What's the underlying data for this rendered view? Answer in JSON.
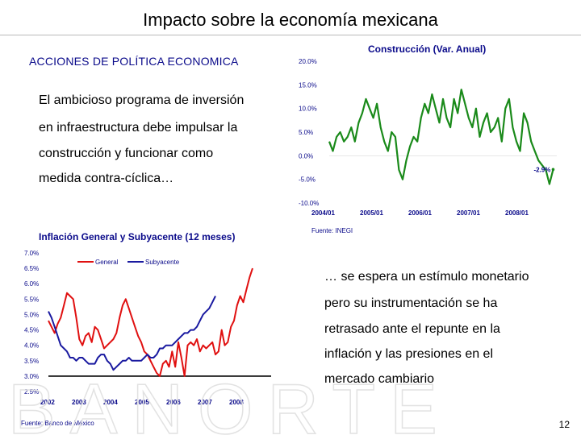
{
  "title": "Impacto sobre la economía mexicana",
  "left_heading": "ACCIONES DE POLÍTICA ECONOMICA",
  "paragraph_lines": [
    "El ambicioso programa de inversión",
    "en infraestructura debe impulsar la",
    "construcción y funcionar como",
    "medida contra-cíclica…"
  ],
  "right_lines": [
    "… se espera un estímulo monetario",
    "pero su instrumentación se ha",
    "retrasado ante el repunte en la",
    "inflación y las presiones en el",
    "mercado cambiario"
  ],
  "page_number": "12",
  "watermark_text": "BANORTE",
  "colors": {
    "title": "#000000",
    "heading": "#0a0a8a",
    "construccion": "#1a8a1a",
    "general": "#e01010",
    "subyacente": "#1a1aa0"
  },
  "chart_data": [
    {
      "type": "line",
      "title": "Construcción (Var. Anual)",
      "source": "Fuente: INEGI",
      "y_tick_labels": [
        "20.0%",
        "15.0%",
        "10.0%",
        "5.0%",
        "0.0%",
        "-5.0%",
        "-10.0%"
      ],
      "y_ticks": [
        20,
        15,
        10,
        5,
        0,
        -5,
        -10
      ],
      "ylim": [
        -10,
        20
      ],
      "x_tick_labels": [
        "2004/01",
        "2005/01",
        "2006/01",
        "2007/01",
        "2008/01"
      ],
      "xlim": [
        0,
        62
      ],
      "annotation": "-2.9%",
      "series": [
        {
          "name": "Construcción",
          "values": [
            3,
            1,
            4,
            5,
            3,
            4,
            6,
            3,
            7,
            9,
            12,
            10,
            8,
            11,
            6,
            3,
            1,
            5,
            4,
            -3,
            -5,
            -1,
            2,
            4,
            3,
            8,
            11,
            9,
            13,
            10,
            7,
            12,
            8,
            6,
            12,
            9,
            14,
            11,
            8,
            6,
            10,
            4,
            7,
            9,
            5,
            6,
            8,
            3,
            10,
            12,
            6,
            3,
            1,
            9,
            7,
            3,
            1,
            -1,
            -2,
            -3,
            -6,
            -2.9
          ]
        }
      ]
    },
    {
      "type": "line",
      "title": "Inflación General y Subyacente (12 meses)",
      "source": "Fuente: Banco de México",
      "y_tick_labels": [
        "7.0%",
        "6.5%",
        "6.0%",
        "5.5%",
        "5.0%",
        "4.5%",
        "4.0%",
        "3.5%",
        "3.0%",
        "2.5%"
      ],
      "y_ticks": [
        7.0,
        6.5,
        6.0,
        5.5,
        5.0,
        4.5,
        4.0,
        3.5,
        3.0,
        2.5
      ],
      "ylim": [
        2.5,
        7.0
      ],
      "x_tick_labels": [
        "2002",
        "2003",
        "2004",
        "2005",
        "2006",
        "2007",
        "2008"
      ],
      "xlim": [
        0,
        72
      ],
      "reference_line": 3.0,
      "legend": [
        "General",
        "Subyacente"
      ],
      "series": [
        {
          "name": "General",
          "values": [
            4.8,
            4.6,
            4.4,
            4.7,
            4.9,
            5.3,
            5.7,
            5.6,
            5.5,
            4.9,
            4.2,
            4.0,
            4.3,
            4.4,
            4.1,
            4.6,
            4.5,
            4.2,
            3.9,
            4.0,
            4.1,
            4.2,
            4.4,
            4.9,
            5.3,
            5.5,
            5.2,
            4.9,
            4.6,
            4.3,
            4.1,
            3.8,
            3.7,
            3.5,
            3.3,
            3.1,
            3.0,
            3.4,
            3.5,
            3.3,
            3.8,
            3.3,
            4.1,
            3.6,
            3.0,
            4.0,
            4.1,
            4.0,
            4.2,
            3.8,
            4.0,
            3.9,
            4.0,
            4.1,
            3.7,
            3.8,
            4.5,
            4.0,
            4.1,
            4.6,
            4.8,
            5.3,
            5.6,
            5.4,
            5.8,
            6.2,
            6.5
          ]
        },
        {
          "name": "Subyacente",
          "values": [
            5.1,
            4.9,
            4.6,
            4.3,
            4.0,
            3.9,
            3.8,
            3.6,
            3.6,
            3.5,
            3.6,
            3.6,
            3.5,
            3.4,
            3.4,
            3.4,
            3.6,
            3.7,
            3.7,
            3.5,
            3.4,
            3.2,
            3.3,
            3.4,
            3.5,
            3.5,
            3.6,
            3.5,
            3.5,
            3.5,
            3.5,
            3.6,
            3.7,
            3.6,
            3.6,
            3.7,
            3.9,
            3.9,
            4.0,
            4.0,
            4.0,
            4.1,
            4.2,
            4.3,
            4.4,
            4.4,
            4.5,
            4.5,
            4.6,
            4.8,
            5.0,
            5.1,
            5.2,
            5.4,
            5.6
          ]
        }
      ]
    }
  ]
}
